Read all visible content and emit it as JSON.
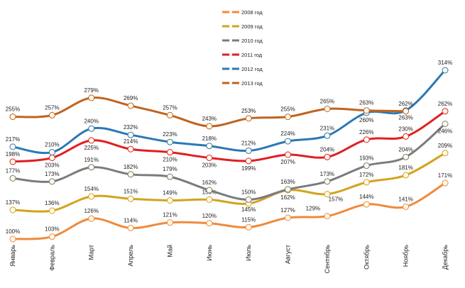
{
  "chart_data": {
    "type": "line",
    "title": "",
    "xlabel": "",
    "ylabel": "",
    "ylim": [
      100,
      314
    ],
    "grid": false,
    "legend_position": "top-center",
    "categories": [
      "Январь",
      "Февраль",
      "Март",
      "Апрель",
      "Май",
      "Июнь",
      "Июль",
      "Август",
      "Сентябрь",
      "Октябрь",
      "Ноябрь",
      "Декабрь"
    ],
    "series": [
      {
        "name": "2008 год",
        "color": "#f08a3c",
        "values": [
          100,
          103,
          126,
          114,
          121,
          120,
          115,
          127,
          129,
          144,
          141,
          171
        ]
      },
      {
        "name": "2009 год",
        "color": "#d4a21e",
        "values": [
          137,
          136,
          154,
          151,
          149,
          150,
          145,
          162,
          157,
          172,
          181,
          209
        ]
      },
      {
        "name": "2010 год",
        "color": "#7b7b7b",
        "values": [
          177,
          173,
          191,
          182,
          179,
          162,
          150,
          163,
          173,
          193,
          204,
          246
        ]
      },
      {
        "name": "2011 год",
        "color": "#e01f23",
        "values": [
          198,
          203,
          225,
          214,
          210,
          203,
          199,
          207,
          204,
          226,
          230,
          262
        ]
      },
      {
        "name": "2012 год",
        "color": "#2a78b6",
        "values": [
          217,
          210,
          240,
          232,
          223,
          218,
          212,
          224,
          231,
          260,
          263,
          314
        ]
      },
      {
        "name": "2013 год",
        "color": "#c0631e",
        "values": [
          255,
          257,
          279,
          269,
          257,
          243,
          253,
          255,
          265,
          263,
          262,
          null
        ]
      }
    ],
    "value_suffix": "%"
  }
}
